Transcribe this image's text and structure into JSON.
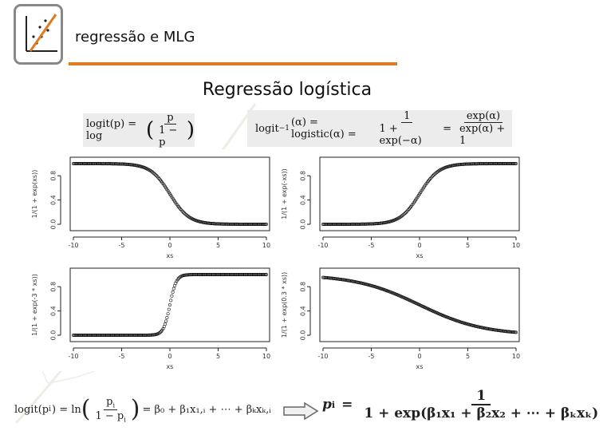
{
  "colors": {
    "accent": "#e07a1f",
    "plot_stroke": "#111111",
    "formula_bg": "#ececec",
    "logo_border": "#888888"
  },
  "header": {
    "title": "regressão e MLG",
    "logo_icon": "scatter-plot-logo-icon"
  },
  "slide": {
    "title": "Regressão logística"
  },
  "formulas": {
    "logit_lhs": "logit(p) = log",
    "logit_num": "p",
    "logit_den": "1 − p",
    "inv_lhs": "logit",
    "inv_sup": "−1",
    "inv_mid": "(α) = logistic(α) =",
    "inv_num1": "1",
    "inv_den1": "1 + exp(−α)",
    "inv_eq": "=",
    "inv_num2": "exp(α)",
    "inv_den2": "exp(α) + 1",
    "bottom_lhs": "logit(p",
    "bottom_lhs_sub": "i",
    "bottom_eq": ") = ln",
    "bottom_num": "p",
    "bottom_num_sub": "i",
    "bottom_den": "1 − p",
    "bottom_den_sub": "i",
    "bottom_rhs": "= β₀ + β₁x₁,ᵢ + ⋯ + βₖxₖ,ᵢ",
    "arrow_icon": "right-arrow-icon",
    "result_lhs": "p",
    "result_lhs_sub": "i",
    "result_eq": "=",
    "result_num": "1",
    "result_den": "1 + exp(β₁x₁ + β₂x₂ + ⋯ + βₖxₖ)"
  },
  "chart_data": [
    {
      "type": "scatter",
      "function": "1/(1 + exp(xs))",
      "ylabel": "1/(1 + exp(xs))",
      "xlabel": "xs",
      "xlim": [
        -10,
        10
      ],
      "ylim": [
        0,
        1
      ],
      "xticks": [
        -10,
        -5,
        0,
        5,
        10
      ],
      "yticks": [
        "0.0",
        "0.4",
        "0.8"
      ],
      "k": -1.0
    },
    {
      "type": "scatter",
      "function": "1/(1 + exp(-xs))",
      "ylabel": "1/(1 + exp(-xs))",
      "xlabel": "xs",
      "xlim": [
        -10,
        10
      ],
      "ylim": [
        0,
        1
      ],
      "xticks": [
        -10,
        -5,
        0,
        5,
        10
      ],
      "yticks": [
        "0.0",
        "0.4",
        "0.8"
      ],
      "k": 1.0
    },
    {
      "type": "scatter",
      "function": "1/(1 + exp(-3 * xs))",
      "ylabel": "1/(1 + exp(-3 * xs))",
      "xlabel": "xs",
      "xlim": [
        -10,
        10
      ],
      "ylim": [
        0,
        1
      ],
      "xticks": [
        -10,
        -5,
        0,
        5,
        10
      ],
      "yticks": [
        "0.0",
        "0.4",
        "0.8"
      ],
      "k": 3.0
    },
    {
      "type": "scatter",
      "function": "1/(1 + exp(0.3 * xs))",
      "ylabel": "1/(1 + exp(0.3 * xs))",
      "xlabel": "xs",
      "xlim": [
        -10,
        10
      ],
      "ylim": [
        0,
        1
      ],
      "xticks": [
        -10,
        -5,
        0,
        5,
        10
      ],
      "yticks": [
        "0.0",
        "0.4",
        "0.8"
      ],
      "k": -0.3
    }
  ]
}
